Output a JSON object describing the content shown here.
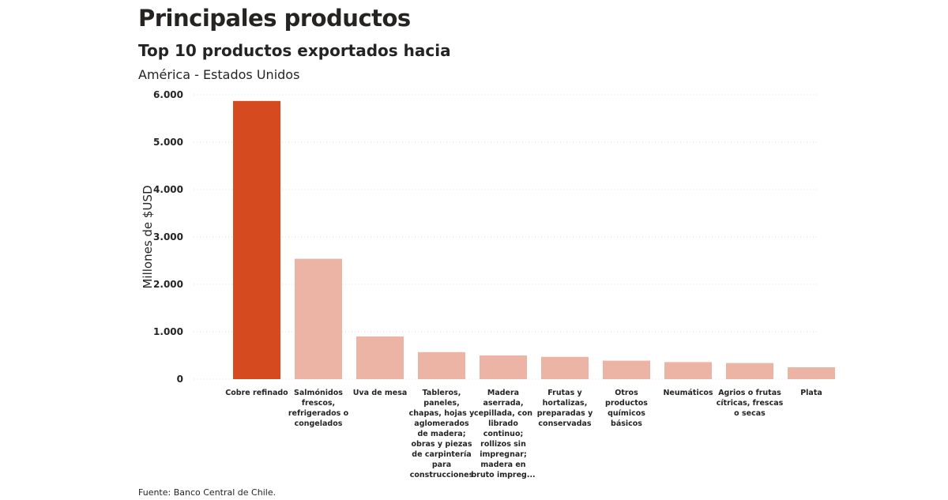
{
  "header": {
    "title": "Principales productos",
    "subtitle": "Top 10 productos exportados hacia",
    "region": "América - Estados Unidos"
  },
  "footer": {
    "source": "Fuente: Banco Central de Chile."
  },
  "colors": {
    "highlight": "#d64a1f",
    "bar": "#ecb4a5",
    "grid": "#d9d9d9"
  },
  "chart_data": {
    "type": "bar",
    "ylabel": "Millones de $USD",
    "ylim": [
      0,
      6000
    ],
    "yticks": [
      "0",
      "1.000",
      "2.000",
      "3.000",
      "4.000",
      "5.000",
      "6.000"
    ],
    "grid": true,
    "categories": [
      "Cobre refinado",
      "Salmónidos frescos, refrigerados o congelados",
      "Uva de mesa",
      "Tableros, paneles, chapas, hojas y aglomerados de madera; obras y piezas de carpintería para construcciones",
      "Madera aserrada, cepillada, con librado continuo; rollizos sin impregnar; madera en bruto impreg...",
      "Frutas y hortalizas, preparadas y conservadas",
      "Otros productos químicos básicos",
      "Neumáticos",
      "Agrios o frutas cítricas, frescas o secas",
      "Plata"
    ],
    "category_lines": [
      [
        "Cobre refinado"
      ],
      [
        "Salmónidos",
        "frescos,",
        "refrigerados o",
        "congelados"
      ],
      [
        "Uva de mesa"
      ],
      [
        "Tableros,",
        "paneles,",
        "chapas, hojas y",
        "aglomerados",
        "de madera;",
        "obras y piezas",
        "de carpintería",
        "para",
        "construcciones"
      ],
      [
        "Madera",
        "aserrada,",
        "cepillada, con",
        "librado",
        "continuo;",
        "rollizos sin",
        "impregnar;",
        "madera en",
        "bruto impreg..."
      ],
      [
        "Frutas y",
        "hortalizas,",
        "preparadas y",
        "conservadas"
      ],
      [
        "Otros",
        "productos",
        "químicos",
        "básicos"
      ],
      [
        "Neumáticos"
      ],
      [
        "Agrios o frutas",
        "cítricas, frescas",
        "o secas"
      ],
      [
        "Plata"
      ]
    ],
    "values": [
      5870,
      2540,
      900,
      570,
      500,
      470,
      390,
      360,
      340,
      250
    ],
    "highlight_index": 0
  }
}
